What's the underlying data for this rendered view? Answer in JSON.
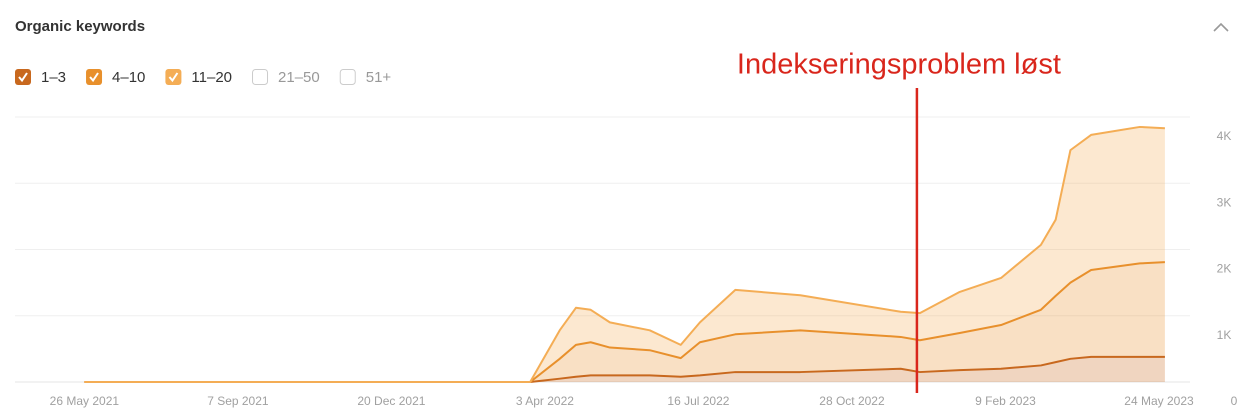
{
  "chart_data": {
    "type": "stacked_area",
    "title": "Organic keywords",
    "annotation": {
      "text": "Indekseringsproblem løst",
      "x": "2022-12-11",
      "color": "#d9261c"
    },
    "x": [
      "2021-05-26",
      "2022-03-24",
      "2022-04-13",
      "2022-04-24",
      "2022-05-04",
      "2022-05-17",
      "2022-06-13",
      "2022-07-04",
      "2022-07-17",
      "2022-08-10",
      "2022-09-23",
      "2022-11-30",
      "2022-12-13",
      "2023-01-09",
      "2023-02-06",
      "2023-03-05",
      "2023-03-15",
      "2023-03-25",
      "2023-04-08",
      "2023-05-11",
      "2023-05-28"
    ],
    "series": [
      {
        "name": "1–3",
        "color": "#c8681e",
        "checked": true,
        "values": [
          0,
          0,
          50,
          80,
          100,
          100,
          100,
          80,
          100,
          150,
          150,
          200,
          150,
          180,
          200,
          250,
          300,
          350,
          380,
          380,
          380
        ]
      },
      {
        "name": "4–10",
        "color": "#e8902c",
        "checked": true,
        "values": [
          0,
          0,
          300,
          480,
          500,
          420,
          380,
          280,
          500,
          570,
          630,
          480,
          480,
          560,
          660,
          840,
          1000,
          1150,
          1310,
          1410,
          1430
        ]
      },
      {
        "name": "11–20",
        "color": "#f4ad55",
        "checked": true,
        "values": [
          0,
          0,
          430,
          560,
          490,
          380,
          300,
          200,
          300,
          670,
          530,
          380,
          410,
          620,
          710,
          980,
          1150,
          2000,
          2040,
          2060,
          2020
        ]
      },
      {
        "name": "21–50",
        "color": "#bbbbbb",
        "checked": false
      },
      {
        "name": "51+",
        "color": "#bbbbbb",
        "checked": false
      }
    ],
    "xlim": [
      "2021-04-09",
      "2023-06-14"
    ],
    "xticks": [
      {
        "value": "2021-05-26",
        "label": "26 May 2021"
      },
      {
        "value": "2021-09-07",
        "label": "7 Sep 2021"
      },
      {
        "value": "2021-12-20",
        "label": "20 Dec 2021"
      },
      {
        "value": "2022-04-03",
        "label": "3 Apr 2022"
      },
      {
        "value": "2022-07-16",
        "label": "16 Jul 2022"
      },
      {
        "value": "2022-10-28",
        "label": "28 Oct 2022"
      },
      {
        "value": "2023-02-09",
        "label": "9 Feb 2023"
      },
      {
        "value": "2023-05-24",
        "label": "24 May 2023"
      }
    ],
    "ylim": [
      0,
      4000
    ],
    "yticks": [
      0,
      {
        "value": 1000,
        "label": "1K"
      },
      {
        "value": 2000,
        "label": "2K"
      },
      {
        "value": 3000,
        "label": "3K"
      },
      {
        "value": 4000,
        "label": "4K"
      }
    ],
    "grid": true
  }
}
